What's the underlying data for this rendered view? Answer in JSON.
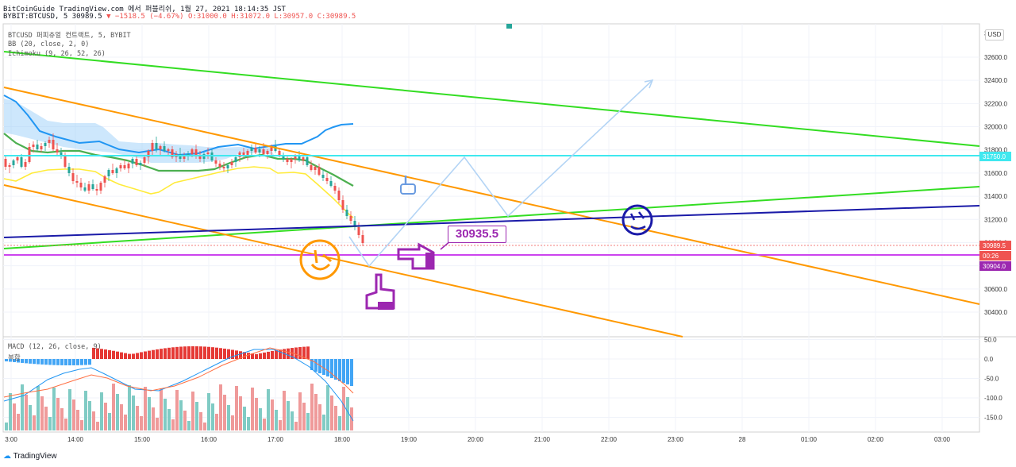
{
  "header": {
    "line1": "BitCoinGuide TradingView.com 에서 퍼블리쉬, 1월 27, 2021 18:14:35 JST",
    "line2_symbol": "BYBIT:BTCUSD, 5",
    "line2_last": "30989.5",
    "line2_change": "−1518.5 (−4.67%)",
    "line2_ohlc": "O:31000.0 H:31072.0 L:30957.0 C:30989.5"
  },
  "legend": {
    "title": "BTCUSD 퍼피츄얼 컨트랙트, 5, BYBIT",
    "bb": "BB (20, close, 2, 0)",
    "ichimoku": "Ichimoku (9, 26, 52, 26)",
    "macd": "MACD (12, 26, close, 9)",
    "macd_sub": "복합"
  },
  "currency": "USD",
  "callout_value": "30935.5",
  "footer_logo": "TradingView",
  "colors": {
    "up": "#26a69a",
    "down": "#ef5350",
    "green_line": "#33dd22",
    "orange_line": "#ff9800",
    "blue_line": "#1a1aa8",
    "cyan_line": "#40e8ef",
    "magenta_line": "#cc44ee",
    "purple": "#9c27b0"
  },
  "chart_data": {
    "type": "candlestick",
    "y_axis_ticks": [
      32600.0,
      32400.0,
      32200.0,
      32000.0,
      31800.0,
      31600.0,
      31400.0,
      31200.0,
      31000.0,
      30800.0,
      30600.0,
      30400.0
    ],
    "y_axis_top_tick": "3",
    "x_axis_ticks": [
      "3:00",
      "14:00",
      "15:00",
      "16:00",
      "17:00",
      "18:00",
      "19:00",
      "20:00",
      "21:00",
      "22:00",
      "23:00",
      "28",
      "01:00",
      "02:00",
      "03:00"
    ],
    "price_labels": [
      {
        "value": "31750.0",
        "color": "#40e8ef"
      },
      {
        "value": "30989.5",
        "color": "#ef5350"
      },
      {
        "value": "00:26",
        "color": "#ef5350"
      },
      {
        "value": "30904.0",
        "color": "#9c27b0"
      }
    ],
    "macd_axis_ticks": [
      50.0,
      0.0,
      -50.0,
      -100.0,
      -150.0
    ]
  }
}
